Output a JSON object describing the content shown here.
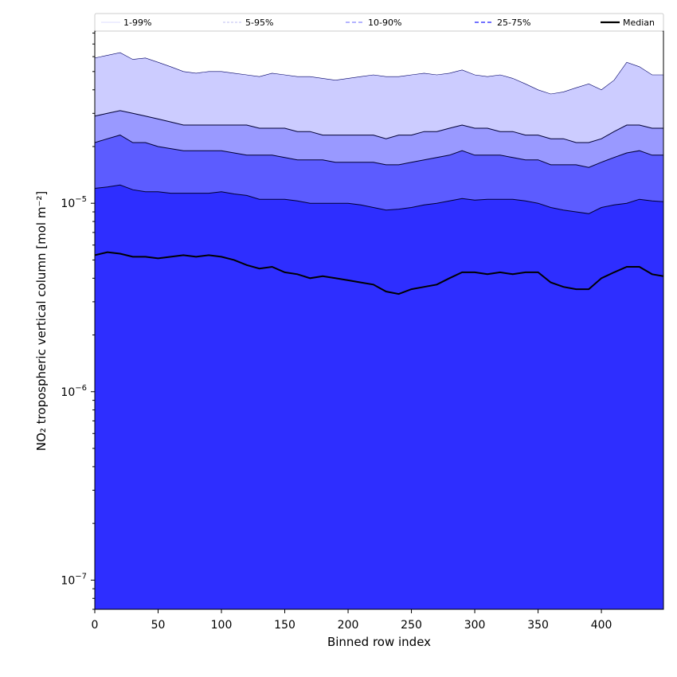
{
  "chart_data": {
    "type": "area",
    "xlabel": "Binned row index",
    "ylabel": "NO₂ tropospheric vertical column [mol m⁻²]",
    "xlim": [
      0,
      449
    ],
    "ylim": [
      7e-08,
      8.2e-05
    ],
    "yscale": "log",
    "grid": false,
    "legend_position": "top",
    "x_ticks": [
      0,
      50,
      100,
      150,
      200,
      250,
      300,
      350,
      400
    ],
    "y_ticks": [
      {
        "value": 1e-07,
        "base": "10",
        "exp": "−7"
      },
      {
        "value": 1e-06,
        "base": "10",
        "exp": "−6"
      },
      {
        "value": 1e-05,
        "base": "10",
        "exp": "−5"
      }
    ],
    "x": [
      0,
      10,
      20,
      30,
      40,
      50,
      60,
      70,
      80,
      90,
      100,
      110,
      120,
      130,
      140,
      150,
      160,
      170,
      180,
      190,
      200,
      210,
      220,
      230,
      240,
      250,
      260,
      270,
      280,
      290,
      300,
      310,
      320,
      330,
      340,
      350,
      360,
      370,
      380,
      390,
      400,
      410,
      420,
      430,
      440,
      449
    ],
    "legend": [
      {
        "label": "1-99%",
        "color": "#d2d2ff",
        "dash": "solid",
        "width": 0.8
      },
      {
        "label": "5-95%",
        "color": "#aaaaee",
        "dash": "3,2",
        "width": 0.8
      },
      {
        "label": "10-90%",
        "color": "#8888ff",
        "dash": "5,3",
        "width": 1.2
      },
      {
        "label": "25-75%",
        "color": "#4444ff",
        "dash": "5,3",
        "width": 1.6
      },
      {
        "label": "Median",
        "color": "#000000",
        "dash": "solid",
        "width": 2.2
      }
    ],
    "bands": [
      {
        "name": "1-99%",
        "color": "#ccccff",
        "upper": [
          5.9e-05,
          6.1e-05,
          6.3e-05,
          5.8e-05,
          5.9e-05,
          5.6e-05,
          5.3e-05,
          5e-05,
          4.9e-05,
          5e-05,
          5e-05,
          4.9e-05,
          4.8e-05,
          4.7e-05,
          4.9e-05,
          4.8e-05,
          4.7e-05,
          4.7e-05,
          4.6e-05,
          4.5e-05,
          4.6e-05,
          4.7e-05,
          4.8e-05,
          4.7e-05,
          4.7e-05,
          4.8e-05,
          4.9e-05,
          4.8e-05,
          4.9e-05,
          5.1e-05,
          4.8e-05,
          4.7e-05,
          4.8e-05,
          4.6e-05,
          4.3e-05,
          4e-05,
          3.8e-05,
          3.9e-05,
          4.1e-05,
          4.3e-05,
          4e-05,
          4.5e-05,
          5.6e-05,
          5.3e-05,
          4.8e-05,
          4.8e-05
        ]
      },
      {
        "name": "5-95%",
        "color": "#9999ff",
        "upper": [
          2.9e-05,
          3e-05,
          3.1e-05,
          3e-05,
          2.9e-05,
          2.8e-05,
          2.7e-05,
          2.6e-05,
          2.6e-05,
          2.6e-05,
          2.6e-05,
          2.6e-05,
          2.6e-05,
          2.5e-05,
          2.5e-05,
          2.5e-05,
          2.4e-05,
          2.4e-05,
          2.3e-05,
          2.3e-05,
          2.3e-05,
          2.3e-05,
          2.3e-05,
          2.2e-05,
          2.3e-05,
          2.3e-05,
          2.4e-05,
          2.4e-05,
          2.5e-05,
          2.6e-05,
          2.5e-05,
          2.5e-05,
          2.4e-05,
          2.4e-05,
          2.3e-05,
          2.3e-05,
          2.2e-05,
          2.2e-05,
          2.1e-05,
          2.1e-05,
          2.2e-05,
          2.4e-05,
          2.6e-05,
          2.6e-05,
          2.5e-05,
          2.5e-05
        ]
      },
      {
        "name": "10-90%",
        "color": "#5c5cff",
        "upper": [
          2.1e-05,
          2.2e-05,
          2.3e-05,
          2.1e-05,
          2.1e-05,
          2e-05,
          1.95e-05,
          1.9e-05,
          1.9e-05,
          1.9e-05,
          1.9e-05,
          1.85e-05,
          1.8e-05,
          1.8e-05,
          1.8e-05,
          1.75e-05,
          1.7e-05,
          1.7e-05,
          1.7e-05,
          1.65e-05,
          1.65e-05,
          1.65e-05,
          1.65e-05,
          1.6e-05,
          1.6e-05,
          1.65e-05,
          1.7e-05,
          1.75e-05,
          1.8e-05,
          1.9e-05,
          1.8e-05,
          1.8e-05,
          1.8e-05,
          1.75e-05,
          1.7e-05,
          1.7e-05,
          1.6e-05,
          1.6e-05,
          1.6e-05,
          1.55e-05,
          1.65e-05,
          1.75e-05,
          1.85e-05,
          1.9e-05,
          1.8e-05,
          1.8e-05
        ]
      },
      {
        "name": "25-75%",
        "color": "#2e2eff",
        "upper": [
          1.2e-05,
          1.22e-05,
          1.25e-05,
          1.18e-05,
          1.15e-05,
          1.15e-05,
          1.13e-05,
          1.13e-05,
          1.13e-05,
          1.13e-05,
          1.15e-05,
          1.12e-05,
          1.1e-05,
          1.05e-05,
          1.05e-05,
          1.05e-05,
          1.03e-05,
          1e-05,
          1e-05,
          1e-05,
          1e-05,
          9.8e-06,
          9.5e-06,
          9.2e-06,
          9.3e-06,
          9.5e-06,
          9.8e-06,
          1e-05,
          1.03e-05,
          1.06e-05,
          1.04e-05,
          1.05e-05,
          1.05e-05,
          1.05e-05,
          1.03e-05,
          1e-05,
          9.5e-06,
          9.2e-06,
          9e-06,
          8.8e-06,
          9.5e-06,
          9.8e-06,
          1e-05,
          1.05e-05,
          1.03e-05,
          1.02e-05
        ]
      }
    ],
    "median": [
      5.3e-06,
      5.5e-06,
      5.4e-06,
      5.2e-06,
      5.2e-06,
      5.1e-06,
      5.2e-06,
      5.3e-06,
      5.2e-06,
      5.3e-06,
      5.2e-06,
      5e-06,
      4.7e-06,
      4.5e-06,
      4.6e-06,
      4.3e-06,
      4.2e-06,
      4e-06,
      4.1e-06,
      4e-06,
      3.9e-06,
      3.8e-06,
      3.7e-06,
      3.4e-06,
      3.3e-06,
      3.5e-06,
      3.6e-06,
      3.7e-06,
      4e-06,
      4.3e-06,
      4.3e-06,
      4.2e-06,
      4.3e-06,
      4.2e-06,
      4.3e-06,
      4.3e-06,
      3.8e-06,
      3.6e-06,
      3.5e-06,
      3.5e-06,
      4e-06,
      4.3e-06,
      4.6e-06,
      4.6e-06,
      4.2e-06,
      4.1e-06
    ]
  }
}
